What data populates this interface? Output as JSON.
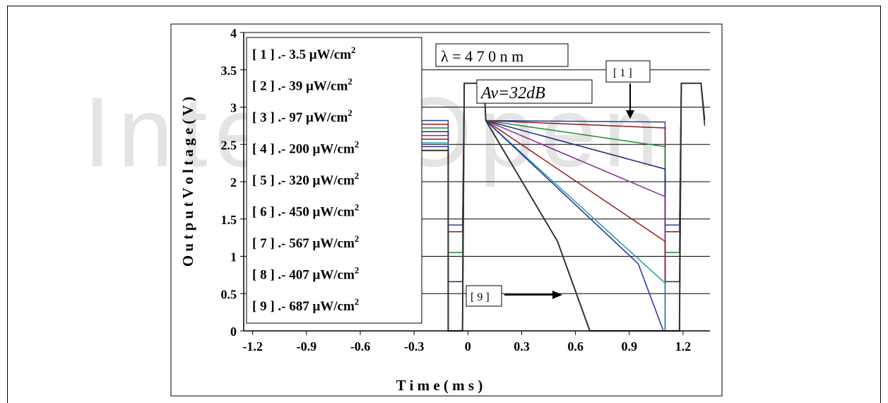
{
  "watermark": "IntechOpen",
  "chart_data": {
    "type": "line",
    "xlabel": "T i m e   ( m s )",
    "ylabel": "O u t p u t   V o l t a g e   ( V )",
    "xlim": [
      -1.25,
      1.35
    ],
    "ylim": [
      0,
      4
    ],
    "xticks": [
      "-1.2",
      "-0.9",
      "-0.6",
      "-0.3",
      "0",
      "0.3",
      "0.6",
      "0.9",
      "1.2"
    ],
    "xtick_values": [
      -1.2,
      -0.9,
      -0.6,
      -0.3,
      0,
      0.3,
      0.6,
      0.9,
      1.2
    ],
    "yticks": [
      "0",
      "0.5",
      "1",
      "1.5",
      "2",
      "2.5",
      "3",
      "3.5",
      "4"
    ],
    "ytick_values": [
      0,
      0.5,
      1,
      1.5,
      2,
      2.5,
      3,
      3.5,
      4
    ],
    "grid": "horizontal",
    "legend": {
      "placement": "top-left",
      "entries": [
        {
          "id": "[ 1 ]",
          "text": "[ 1 ] .-   3.5 μW/cm",
          "sup": "2"
        },
        {
          "id": "[ 2 ]",
          "text": "[ 2 ] .- 39 μW/cm",
          "sup": "2"
        },
        {
          "id": "[ 3 ]",
          "text": "[ 3 ] .-  97 μW/cm",
          "sup": "2"
        },
        {
          "id": "[ 4 ]",
          "text": "[ 4 ] .- 200 μW/cm",
          "sup": "2"
        },
        {
          "id": "[ 5 ]",
          "text": "[ 5 ] .- 320 μW/cm",
          "sup": "2"
        },
        {
          "id": "[ 6 ]",
          "text": "[ 6 ] .- 450 μW/cm",
          "sup": "2"
        },
        {
          "id": "[ 7 ]",
          "text": "[ 7 ] .- 567 μW/cm",
          "sup": "2"
        },
        {
          "id": "[ 8 ]",
          "text": "[ 8 ] .- 407 μW/cm",
          "sup": "2"
        },
        {
          "id": "[ 9 ]",
          "text": "[ 9 ] .- 687 μW/cm",
          "sup": "2"
        }
      ]
    },
    "annotations": {
      "wavelength": "λ = 4 7 0 n m",
      "gain": "Av=32dB",
      "label_1": "[ 1 ]",
      "label_9": "[ 9 ]"
    },
    "series": [
      {
        "name": "[ 1 ]",
        "color": "#2b3f9e",
        "low": 1.42,
        "points": [
          [
            0.1,
            2.82
          ],
          [
            1.1,
            2.8
          ]
        ]
      },
      {
        "name": "[ 2 ]",
        "color": "#8b1a1a",
        "low": 1.33,
        "points": [
          [
            0.1,
            2.82
          ],
          [
            1.1,
            2.72
          ]
        ]
      },
      {
        "name": "[ 3 ]",
        "color": "#1e8a3a",
        "low": 1.05,
        "points": [
          [
            0.1,
            2.82
          ],
          [
            1.1,
            2.47
          ]
        ]
      },
      {
        "name": "[ 4 ]",
        "color": "#1f2a7a",
        "low": 0.66,
        "points": [
          [
            0.1,
            2.82
          ],
          [
            1.1,
            2.17
          ]
        ]
      },
      {
        "name": "[ 5 ]",
        "color": "#8a2a9a",
        "low": 0.0,
        "points": [
          [
            0.1,
            2.82
          ],
          [
            1.1,
            1.8
          ]
        ]
      },
      {
        "name": "[ 6 ]",
        "color": "#a01818",
        "low": 0.0,
        "points": [
          [
            0.1,
            2.82
          ],
          [
            1.1,
            1.2
          ]
        ]
      },
      {
        "name": "[ 7 ]",
        "color": "#17a0a0",
        "low": 0.0,
        "points": [
          [
            0.1,
            2.82
          ],
          [
            1.1,
            0.64
          ]
        ]
      },
      {
        "name": "[ 8 ]",
        "color": "#2530a0",
        "low": 0.0,
        "points": [
          [
            0.1,
            2.82
          ],
          [
            0.95,
            0.9
          ],
          [
            1.09,
            0.0
          ]
        ]
      },
      {
        "name": "[ 9 ]",
        "color": "#333333",
        "low": 0.0,
        "points": [
          [
            0.1,
            2.82
          ],
          [
            0.5,
            1.2
          ],
          [
            0.68,
            0.0
          ]
        ]
      }
    ],
    "reset_pulse": {
      "high": 3.32,
      "windows": [
        [
          -0.02,
          0.09
        ],
        [
          1.19,
          1.3
        ]
      ]
    }
  }
}
